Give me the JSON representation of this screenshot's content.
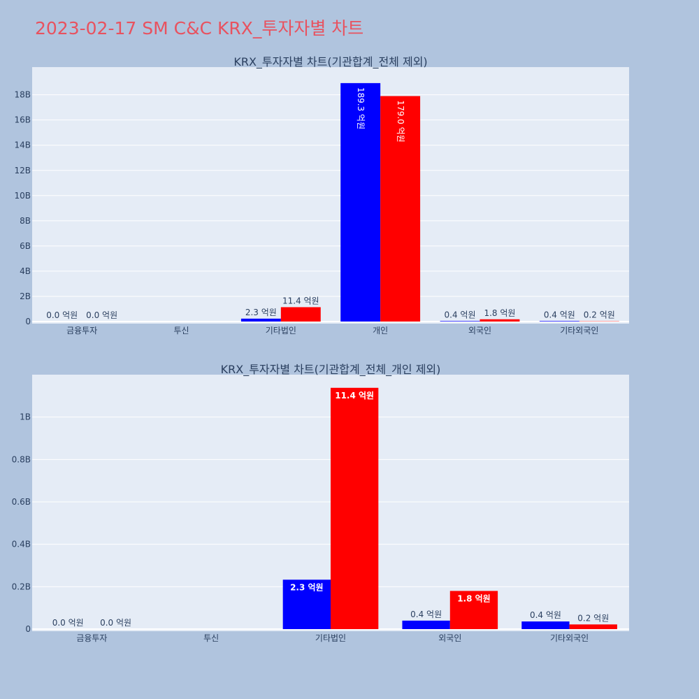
{
  "title": "2023-02-17 SM C&C KRX_투자자별 차트",
  "colors": {
    "page_bg": "#b0c4de",
    "plot_bg": "#e5ecf6",
    "title": "#e8525f",
    "buy": "#0000ff",
    "sell": "#ff0000",
    "grid": "#ffffff",
    "text": "#2a3f5f"
  },
  "chart_data": [
    {
      "type": "bar",
      "title": "KRX_투자자별 차트(기관합계_전체 제외)",
      "categories": [
        "금융투자",
        "투신",
        "기타법인",
        "개인",
        "외국인",
        "기타외국인"
      ],
      "ylim": [
        0,
        20.2
      ],
      "y_ticks": [
        0,
        2,
        4,
        6,
        8,
        10,
        12,
        14,
        16,
        18
      ],
      "y_tick_labels": [
        "0",
        "2B",
        "4B",
        "6B",
        "8B",
        "10B",
        "12B",
        "14B",
        "16B",
        "18B"
      ],
      "series": [
        {
          "color": "#0000ff",
          "values": [
            0.0,
            null,
            0.23,
            18.93,
            0.04,
            0.04
          ],
          "labels": [
            "0.0 억원",
            "",
            "2.3 억원",
            "189.3 억원",
            "0.4 억원",
            "0.4 억원"
          ]
        },
        {
          "color": "#ff0000",
          "values": [
            0.0,
            null,
            1.14,
            17.9,
            0.18,
            0.02
          ],
          "labels": [
            "0.0 억원",
            "",
            "11.4 억원",
            "179.0 억원",
            "1.8 억원",
            "0.2 억원"
          ]
        }
      ]
    },
    {
      "type": "bar",
      "title": "KRX_투자자별 차트(기관합계_전체_개인 제외)",
      "categories": [
        "금융투자",
        "투신",
        "기타법인",
        "외국인",
        "기타외국인"
      ],
      "ylim": [
        0,
        1.2
      ],
      "y_ticks": [
        0,
        0.2,
        0.4,
        0.6,
        0.8,
        1.0
      ],
      "y_tick_labels": [
        "0",
        "0.2B",
        "0.4B",
        "0.6B",
        "0.8B",
        "1B"
      ],
      "series": [
        {
          "color": "#0000ff",
          "values": [
            0.0,
            null,
            0.233,
            0.04,
            0.036
          ],
          "labels": [
            "0.0 억원",
            "",
            "2.3 억원",
            "0.4 억원",
            "0.4 억원"
          ]
        },
        {
          "color": "#ff0000",
          "values": [
            0.0,
            null,
            1.138,
            0.18,
            0.022
          ],
          "labels": [
            "0.0 억원",
            "",
            "11.4 억원",
            "1.8 억원",
            "0.2 억원"
          ]
        }
      ]
    }
  ]
}
